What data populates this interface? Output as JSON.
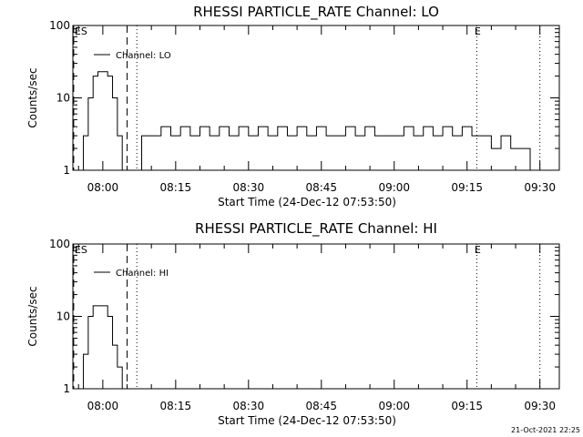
{
  "footer": "21-Oct-2021 22:25",
  "chart_data": [
    {
      "type": "line",
      "title": "RHESSI PARTICLE_RATE Channel: LO",
      "xlabel": "Start Time (24-Dec-12 07:53:50)",
      "ylabel": "Counts/sec",
      "ytick_labels": [
        "1",
        "10",
        "100"
      ],
      "xtick_labels": [
        "08:00",
        "08:15",
        "08:30",
        "08:45",
        "09:00",
        "09:15",
        "09:30"
      ],
      "ylim": [
        1,
        100
      ],
      "yscale": "log",
      "grid": false,
      "legend": "top-left",
      "series": [
        {
          "name": "Channel: LO",
          "x": [
            "07:55",
            "07:56",
            "07:57",
            "07:58",
            "07:59",
            "08:00",
            "08:01",
            "08:02",
            "08:03",
            "08:04",
            "08:05",
            "08:06",
            "08:07",
            "08:08",
            "08:10",
            "08:12",
            "08:14",
            "08:16",
            "08:18",
            "08:20",
            "08:22",
            "08:24",
            "08:26",
            "08:28",
            "08:30",
            "08:32",
            "08:34",
            "08:36",
            "08:38",
            "08:40",
            "08:42",
            "08:44",
            "08:46",
            "08:48",
            "08:50",
            "08:52",
            "08:54",
            "08:56",
            "08:58",
            "09:00",
            "09:02",
            "09:04",
            "09:06",
            "09:08",
            "09:10",
            "09:12",
            "09:14",
            "09:16",
            "09:18",
            "09:20",
            "09:22",
            "09:24",
            "09:26",
            "09:28",
            "09:29"
          ],
          "values": [
            1,
            3,
            10,
            20,
            23,
            23,
            20,
            10,
            3,
            1,
            1,
            1,
            1,
            3,
            3,
            4,
            3,
            4,
            3,
            4,
            3,
            4,
            3,
            4,
            3,
            4,
            3,
            4,
            3,
            4,
            3,
            4,
            3,
            3,
            4,
            3,
            4,
            3,
            3,
            3,
            4,
            3,
            4,
            3,
            4,
            3,
            4,
            3,
            3,
            2,
            3,
            2,
            2,
            1,
            1
          ]
        }
      ],
      "annotations": [
        {
          "label": "ES",
          "x": "07:54",
          "style": "dashed"
        },
        {
          "label": "",
          "x": "08:05",
          "style": "dashed"
        },
        {
          "label": "",
          "x": "08:07",
          "style": "dotted"
        },
        {
          "label": "E",
          "x": "09:17",
          "style": "dotted"
        },
        {
          "label": "",
          "x": "09:30",
          "style": "dotted"
        }
      ]
    },
    {
      "type": "line",
      "title": "RHESSI PARTICLE_RATE Channel: HI",
      "xlabel": "Start Time (24-Dec-12 07:53:50)",
      "ylabel": "Counts/sec",
      "ytick_labels": [
        "1",
        "10",
        "100"
      ],
      "xtick_labels": [
        "08:00",
        "08:15",
        "08:30",
        "08:45",
        "09:00",
        "09:15",
        "09:30"
      ],
      "ylim": [
        1,
        100
      ],
      "yscale": "log",
      "grid": false,
      "legend": "top-left",
      "series": [
        {
          "name": "Channel: HI",
          "x": [
            "07:55",
            "07:56",
            "07:57",
            "07:58",
            "07:59",
            "08:00",
            "08:01",
            "08:02",
            "08:03",
            "08:04"
          ],
          "values": [
            1,
            3,
            10,
            14,
            14,
            14,
            10,
            4,
            2,
            1
          ]
        }
      ],
      "annotations": [
        {
          "label": "ES",
          "x": "07:54",
          "style": "dashed"
        },
        {
          "label": "",
          "x": "08:05",
          "style": "dashed"
        },
        {
          "label": "",
          "x": "08:07",
          "style": "dotted"
        },
        {
          "label": "E",
          "x": "09:17",
          "style": "dotted"
        },
        {
          "label": "",
          "x": "09:30",
          "style": "dotted"
        }
      ]
    }
  ]
}
